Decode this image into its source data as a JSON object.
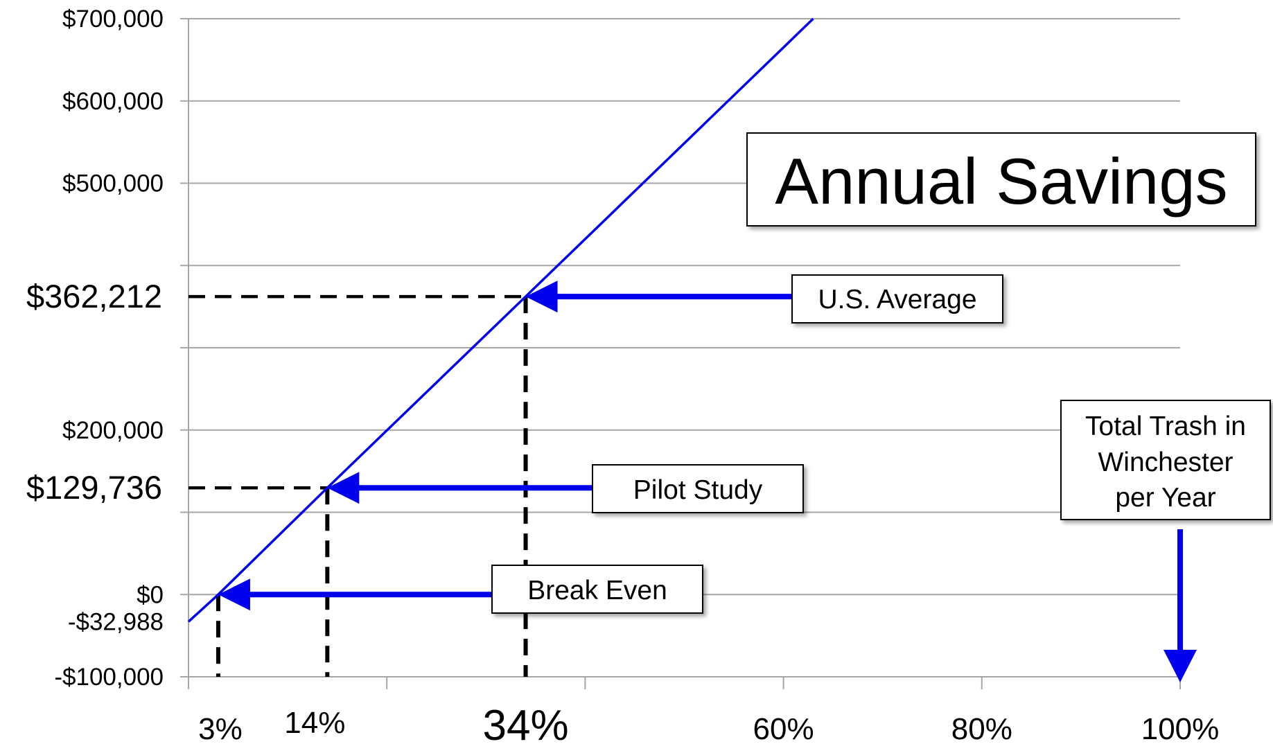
{
  "chart_data": {
    "type": "line",
    "title": "Annual Savings",
    "xlabel": "",
    "ylabel": "",
    "xlim": [
      0,
      100
    ],
    "ylim": [
      -100000,
      700000
    ],
    "grid": true,
    "y_tick_values": [
      700000,
      600000,
      500000,
      400000,
      300000,
      200000,
      100000,
      0,
      -100000
    ],
    "y_tick_labels": [
      {
        "value": 700000,
        "label": "$700,000"
      },
      {
        "value": 600000,
        "label": "$600,000"
      },
      {
        "value": 500000,
        "label": "$500,000"
      },
      {
        "value": 362212,
        "label": "$362,212",
        "emphasis": true
      },
      {
        "value": 200000,
        "label": "$200,000"
      },
      {
        "value": 129736,
        "label": "$129,736",
        "emphasis": true
      },
      {
        "value": 0,
        "label": "$0"
      },
      {
        "value": -32988,
        "label": "-$32,988"
      },
      {
        "value": -100000,
        "label": "-$100,000"
      }
    ],
    "x_tick_values": [
      0,
      20,
      40,
      60,
      80,
      100
    ],
    "x_tick_labels": [
      {
        "value": 3,
        "label": "3%"
      },
      {
        "value": 14,
        "label": "14%"
      },
      {
        "value": 34,
        "label": "34%",
        "emphasis": true
      },
      {
        "value": 60,
        "label": "60%"
      },
      {
        "value": 80,
        "label": "80%"
      },
      {
        "value": 100,
        "label": "100%"
      }
    ],
    "series": [
      {
        "color": "#0000ee",
        "x": [
          0,
          3,
          14,
          34,
          63
        ],
        "y": [
          -32988,
          0,
          129736,
          362212,
          700000
        ]
      }
    ],
    "annotations": [
      {
        "name": "us-average",
        "text": "U.S. Average",
        "x": 34,
        "y": 362212
      },
      {
        "name": "pilot-study",
        "text": "Pilot Study",
        "x": 14,
        "y": 129736
      },
      {
        "name": "break-even",
        "text": "Break Even",
        "x": 3,
        "y": 0
      }
    ],
    "callout": {
      "lines": [
        "Total Trash in",
        "Winchester",
        "per Year"
      ],
      "x": 100
    },
    "colors": {
      "line": "#0000ee",
      "arrow": "#0000ee",
      "grid": "#a6a6a6",
      "guide": "#000000"
    }
  }
}
